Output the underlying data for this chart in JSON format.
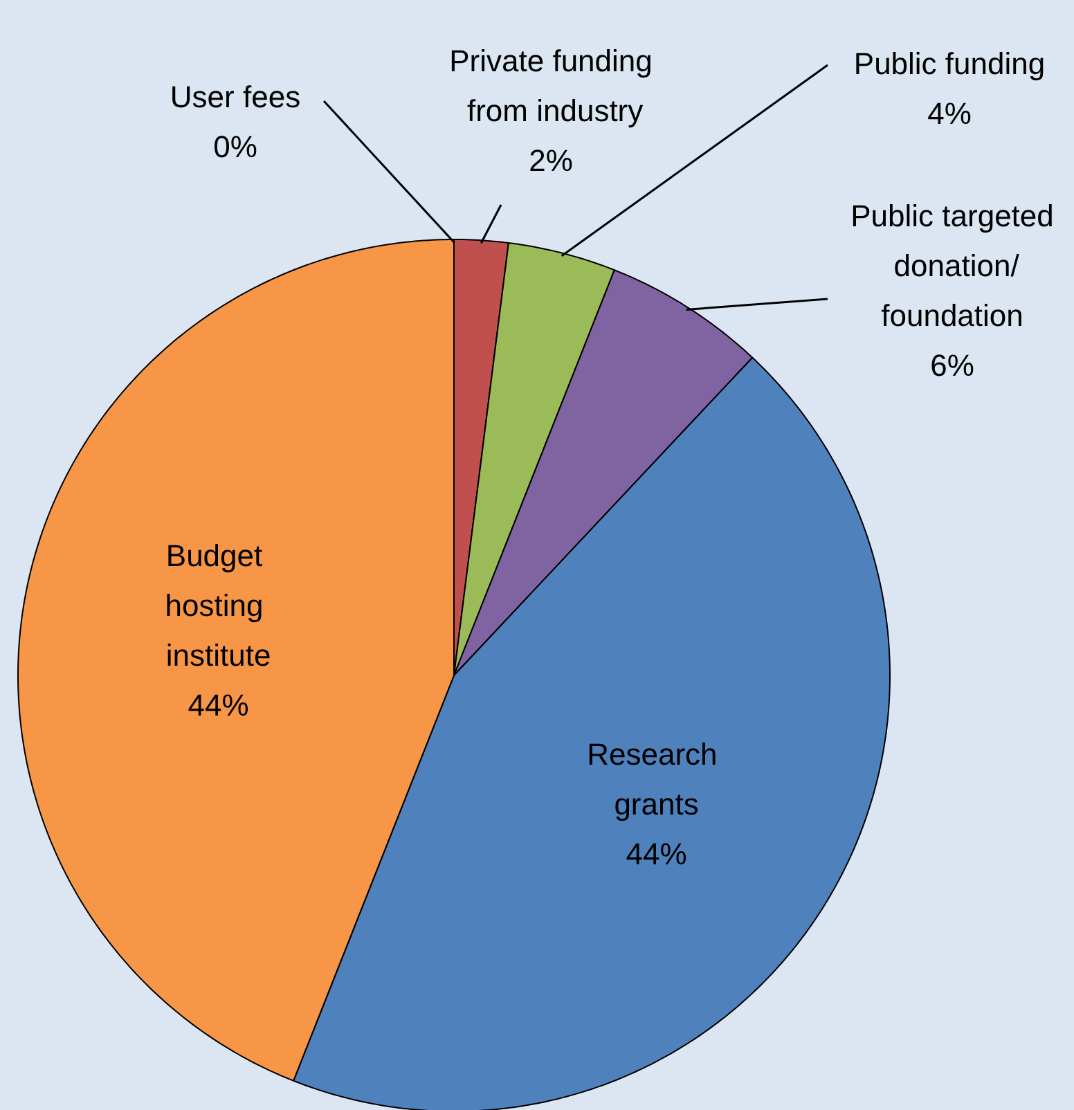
{
  "chart_data": {
    "type": "pie",
    "categories": [
      "User fees",
      "Private funding from industry",
      "Public funding",
      "Public targeted donation/foundation",
      "Research grants",
      "Budget hosting institute"
    ],
    "values": [
      0,
      2,
      4,
      6,
      44,
      44
    ],
    "colors": [
      "#2c5d8f",
      "#c0504d",
      "#9bbb59",
      "#8064a2",
      "#4f81bd",
      "#f79646"
    ],
    "value_labels": [
      "0%",
      "2%",
      "4%",
      "6%",
      "44%",
      "44%"
    ]
  }
}
